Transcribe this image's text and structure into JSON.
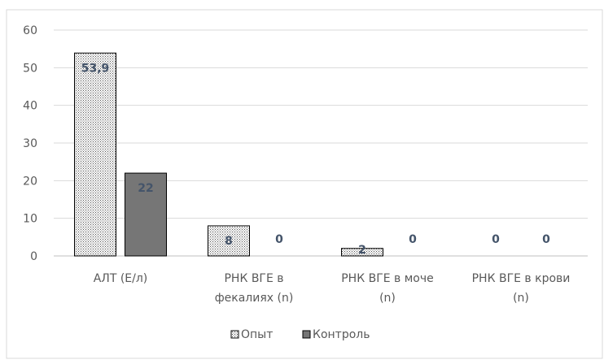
{
  "chart_data": {
    "type": "bar",
    "categories": [
      [
        "АЛТ (Е/л)"
      ],
      [
        "РНК ВГЕ в",
        "фекалиях (n)"
      ],
      [
        "РНК ВГЕ в моче",
        "(n)"
      ],
      [
        "РНК ВГЕ в крови",
        "(n)"
      ]
    ],
    "series": [
      {
        "name": "Опыт",
        "values": [
          53.9,
          8,
          2,
          0
        ],
        "labels": [
          "53,9",
          "8",
          "2",
          "0"
        ],
        "color": "#ffffff",
        "pattern": "dotted"
      },
      {
        "name": "Контроль",
        "values": [
          22,
          0,
          0,
          0
        ],
        "labels": [
          "22",
          "0",
          "0",
          "0"
        ],
        "color": "#767676",
        "pattern": "solid"
      }
    ],
    "ylim": [
      0,
      60
    ],
    "yticks": [
      0,
      10,
      20,
      30,
      40,
      50,
      60
    ],
    "grid": true,
    "legend": "bottom",
    "title": "",
    "xlabel": "",
    "ylabel": ""
  }
}
